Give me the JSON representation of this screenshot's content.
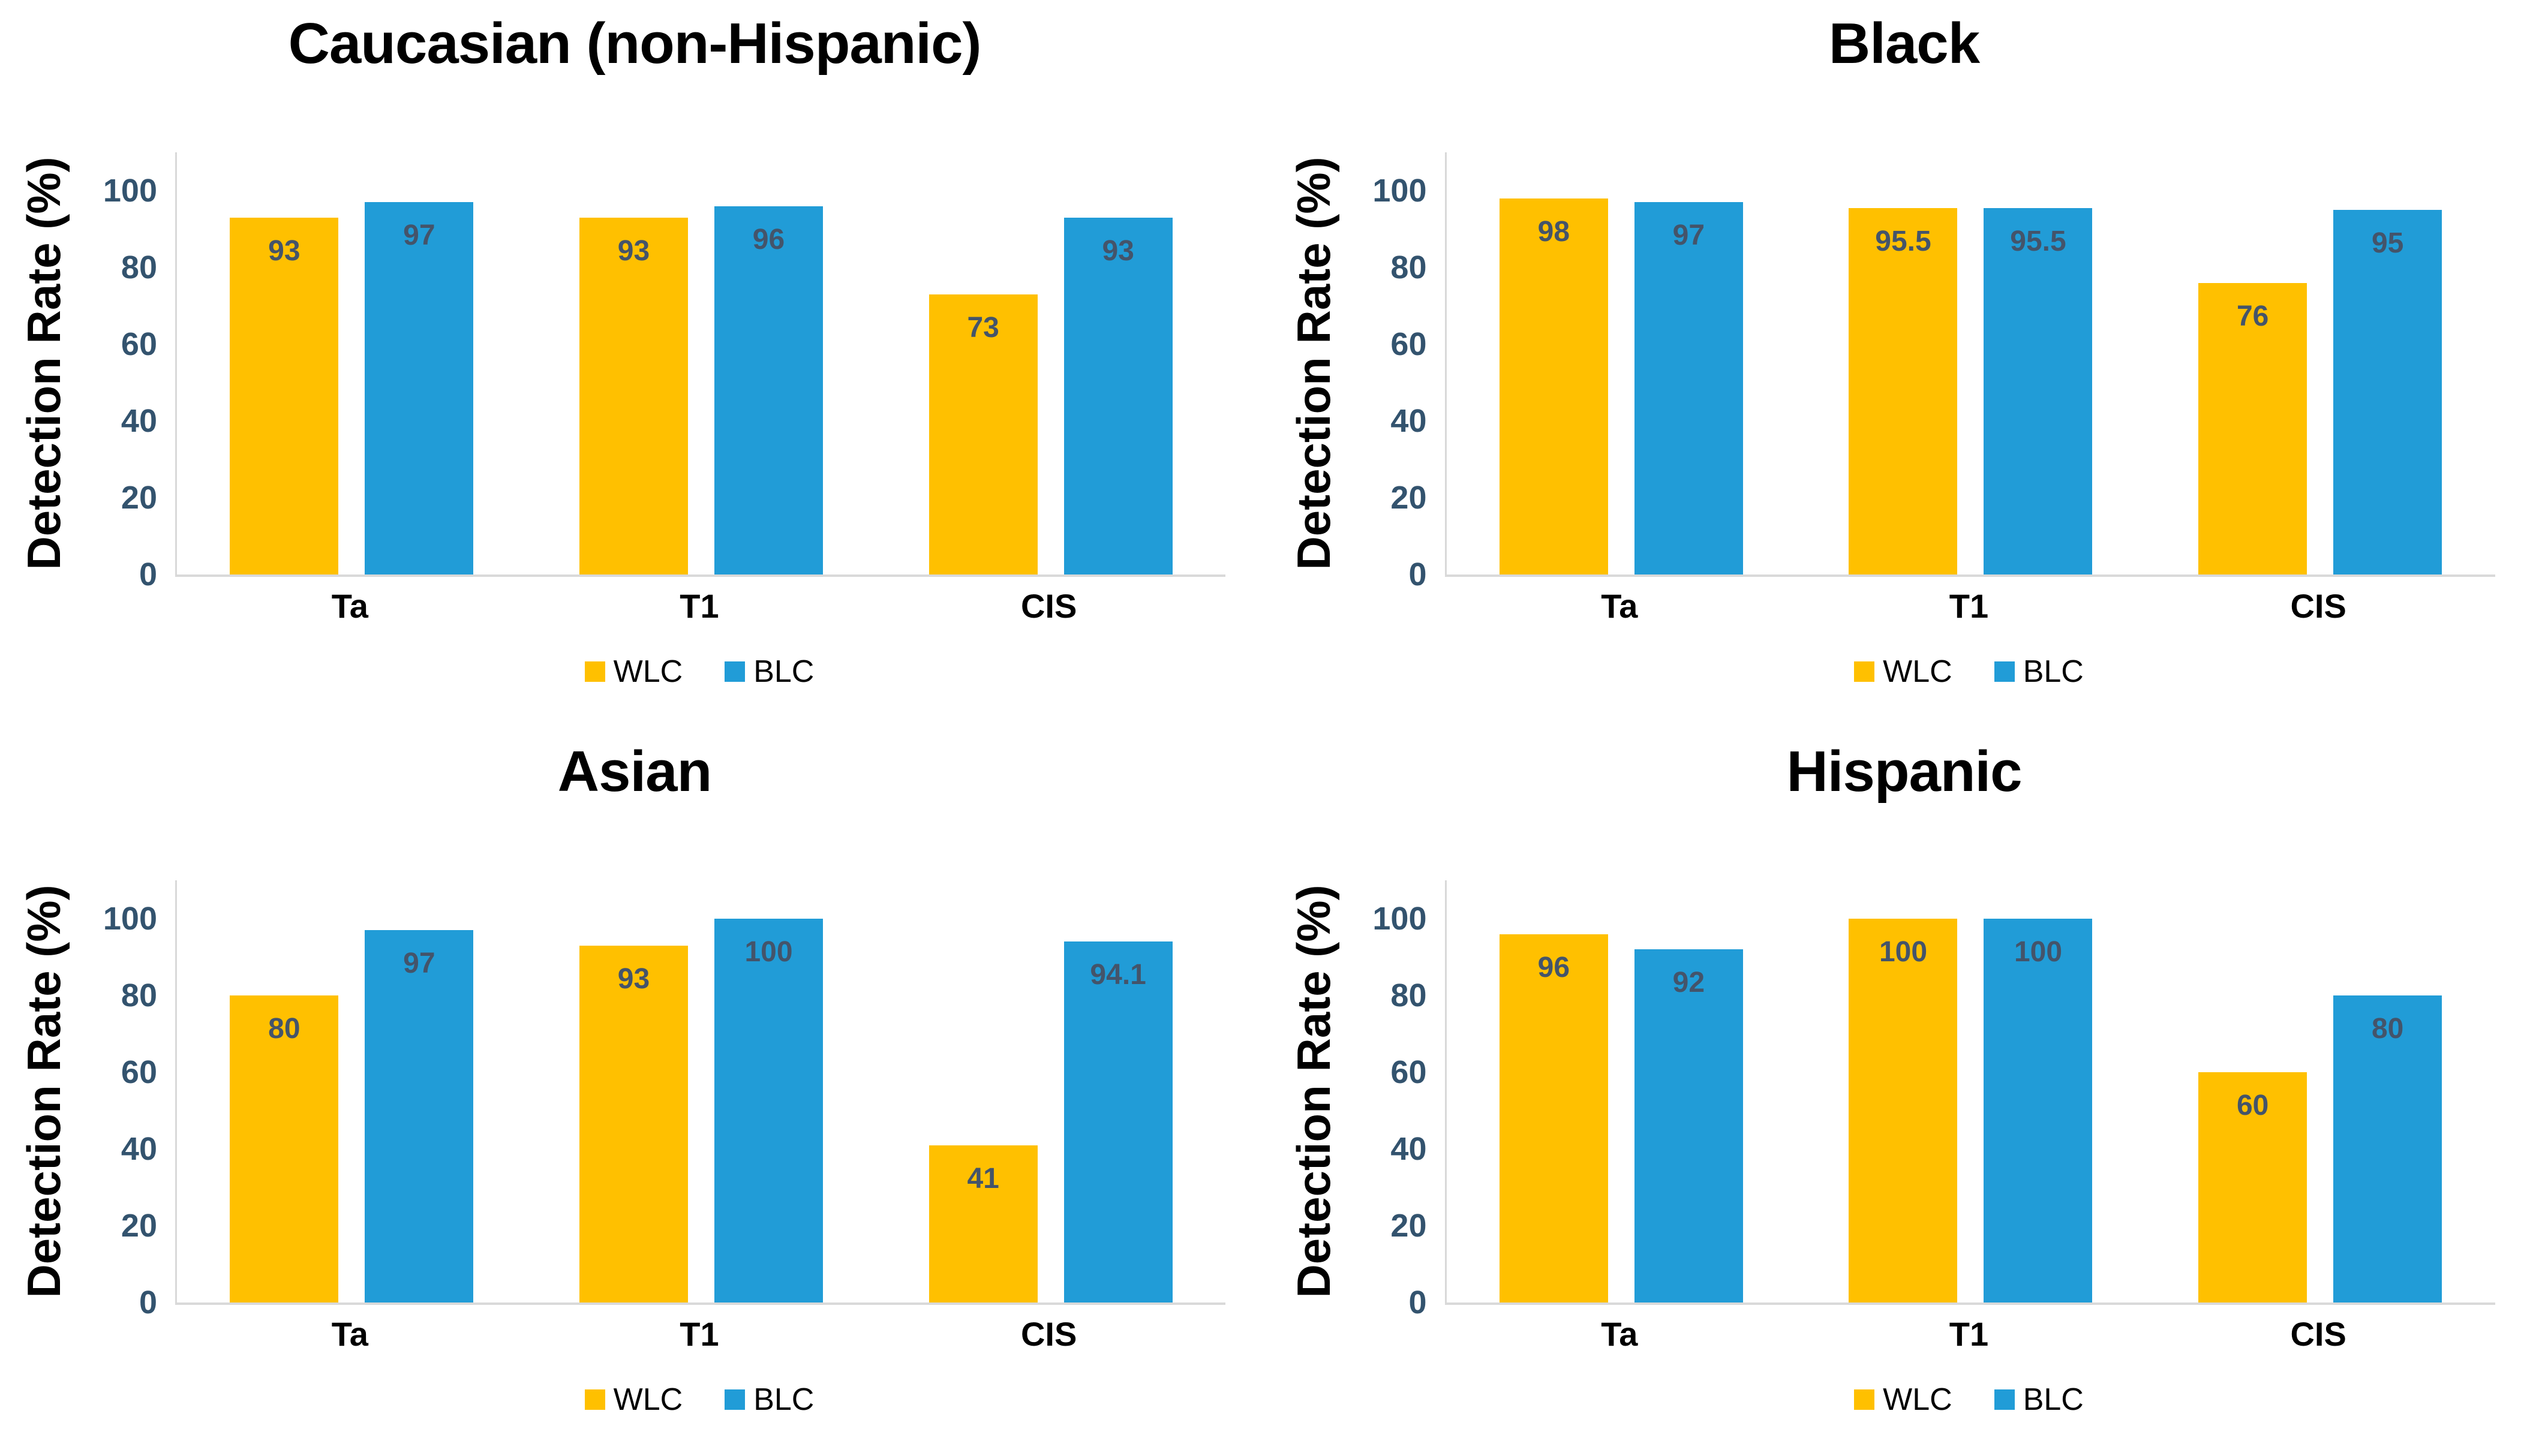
{
  "colors": {
    "wlc": "#FFC000",
    "blc": "#219CD7",
    "data_label": "#44546A",
    "tick_label": "#33536E",
    "axis_line": "#D9D9D9",
    "title": "#000000"
  },
  "y_axis": {
    "title": "Detection Rate (%)",
    "ticks": [
      0,
      20,
      40,
      60,
      80,
      100
    ],
    "axis_max": 110
  },
  "legend": {
    "items": [
      {
        "label": "WLC",
        "color": "#FFC000"
      },
      {
        "label": "BLC",
        "color": "#219CD7"
      }
    ]
  },
  "chart_data": [
    {
      "type": "bar",
      "title": "Caucasian (non-Hispanic)",
      "categories": [
        "Ta",
        "T1",
        "CIS"
      ],
      "series": [
        {
          "name": "WLC",
          "values": [
            93,
            93,
            73
          ]
        },
        {
          "name": "BLC",
          "values": [
            97,
            96,
            93
          ]
        }
      ],
      "xlabel": "",
      "ylabel": "Detection Rate (%)",
      "ylim": [
        0,
        110
      ],
      "grid": false,
      "legend_position": "bottom",
      "data_labels": "inside-end"
    },
    {
      "type": "bar",
      "title": "Black",
      "categories": [
        "Ta",
        "T1",
        "CIS"
      ],
      "series": [
        {
          "name": "WLC",
          "values": [
            98,
            95.5,
            76
          ]
        },
        {
          "name": "BLC",
          "values": [
            97,
            95.5,
            95
          ]
        }
      ],
      "xlabel": "",
      "ylabel": "Detection Rate (%)",
      "ylim": [
        0,
        110
      ],
      "grid": false,
      "legend_position": "bottom",
      "data_labels": "inside-end"
    },
    {
      "type": "bar",
      "title": "Asian",
      "categories": [
        "Ta",
        "T1",
        "CIS"
      ],
      "series": [
        {
          "name": "WLC",
          "values": [
            80,
            93,
            41
          ]
        },
        {
          "name": "BLC",
          "values": [
            97,
            100,
            94.1
          ]
        }
      ],
      "xlabel": "",
      "ylabel": "Detection Rate (%)",
      "ylim": [
        0,
        110
      ],
      "grid": false,
      "legend_position": "bottom",
      "data_labels": "inside-end"
    },
    {
      "type": "bar",
      "title": "Hispanic",
      "categories": [
        "Ta",
        "T1",
        "CIS"
      ],
      "series": [
        {
          "name": "WLC",
          "values": [
            96,
            100,
            60
          ]
        },
        {
          "name": "BLC",
          "values": [
            92,
            100,
            80
          ]
        }
      ],
      "xlabel": "",
      "ylabel": "Detection Rate (%)",
      "ylim": [
        0,
        110
      ],
      "grid": false,
      "legend_position": "bottom",
      "data_labels": "inside-end"
    }
  ]
}
